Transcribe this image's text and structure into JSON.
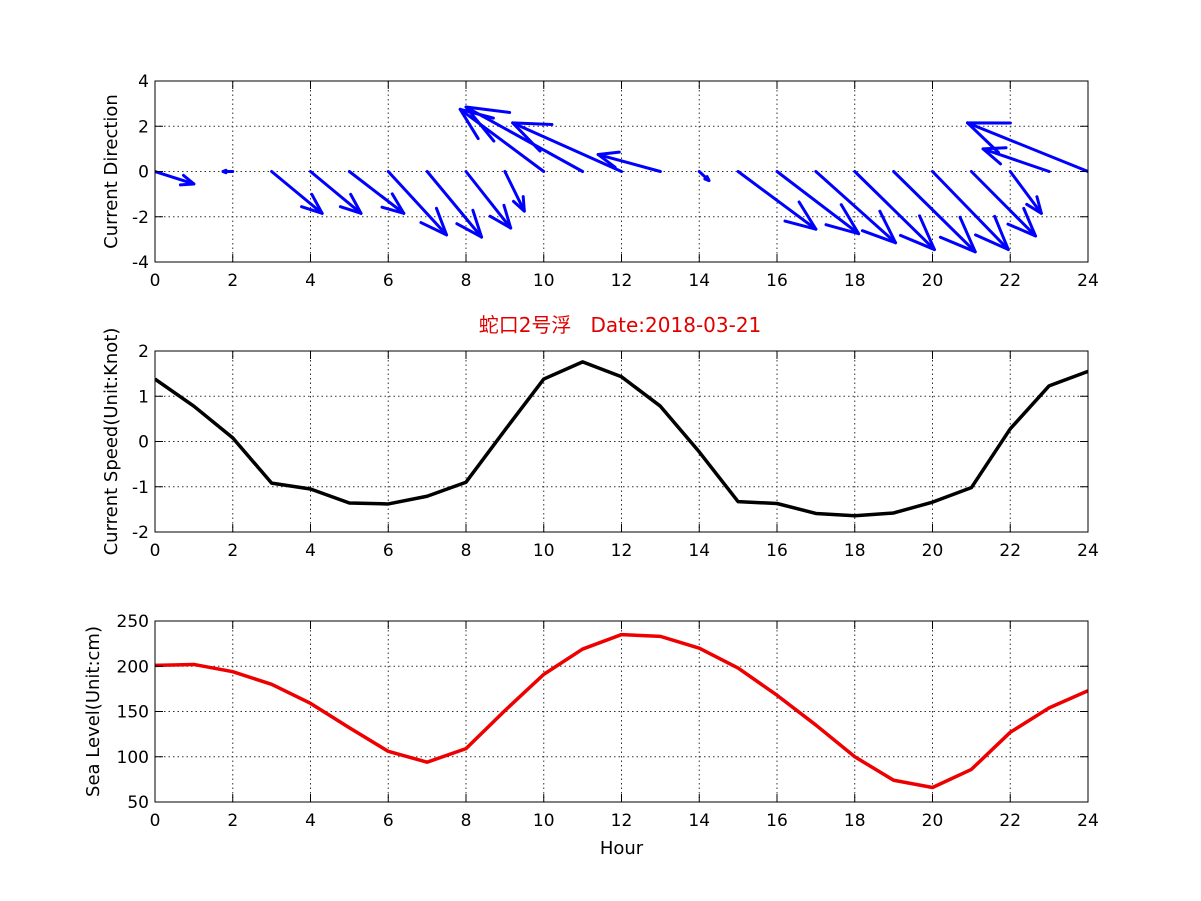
{
  "figure": {
    "title": "蛇口2号浮   Date:2018-03-21",
    "title_color": "#e00000"
  },
  "chart_data": [
    {
      "type": "quiver",
      "xlabel": "",
      "ylabel": "Current Direction",
      "xlim": [
        0,
        24
      ],
      "ylim": [
        -4,
        4
      ],
      "xticks": [
        0,
        2,
        4,
        6,
        8,
        10,
        12,
        14,
        16,
        18,
        20,
        22,
        24
      ],
      "yticks": [
        -4,
        -2,
        0,
        2,
        4
      ],
      "grid": true,
      "color": "#0000ff",
      "x": [
        0,
        1,
        2,
        3,
        4,
        5,
        6,
        7,
        8,
        9,
        10,
        11,
        12,
        13,
        14,
        15,
        16,
        17,
        18,
        19,
        20,
        21,
        22,
        23,
        24
      ],
      "u": [
        1.0,
        0.0,
        -0.25,
        1.3,
        1.3,
        1.4,
        1.5,
        1.4,
        1.15,
        0.5,
        -2.15,
        -3.0,
        -2.8,
        -1.6,
        0.25,
        2.0,
        2.1,
        2.05,
        2.05,
        2.1,
        1.95,
        1.65,
        0.8,
        -1.7,
        -3.1
      ],
      "v": [
        -0.55,
        0.0,
        0.0,
        -1.85,
        -1.85,
        -1.85,
        -2.8,
        -2.9,
        -2.5,
        -1.75,
        2.75,
        2.85,
        2.15,
        0.75,
        -0.4,
        -2.55,
        -2.75,
        -3.15,
        -3.45,
        -3.55,
        -3.45,
        -2.85,
        -1.85,
        1.0,
        2.15
      ]
    },
    {
      "type": "line",
      "xlabel": "",
      "ylabel": "Current Speed(Unit:Knot)",
      "xlim": [
        0,
        24
      ],
      "ylim": [
        -2,
        2
      ],
      "xticks": [
        0,
        2,
        4,
        6,
        8,
        10,
        12,
        14,
        16,
        18,
        20,
        22,
        24
      ],
      "yticks": [
        -2,
        -1,
        0,
        1,
        2
      ],
      "grid": true,
      "color": "#000000",
      "x": [
        0,
        1,
        2,
        3,
        4,
        5,
        6,
        7,
        8,
        9,
        10,
        11,
        12,
        13,
        14,
        15,
        16,
        17,
        18,
        19,
        20,
        21,
        22,
        23,
        24
      ],
      "y": [
        1.38,
        0.78,
        0.08,
        -0.92,
        -1.05,
        -1.36,
        -1.38,
        -1.21,
        -0.9,
        0.25,
        1.38,
        1.76,
        1.43,
        0.78,
        -0.23,
        -1.33,
        -1.37,
        -1.59,
        -1.64,
        -1.58,
        -1.34,
        -1.02,
        0.28,
        1.23,
        1.55
      ]
    },
    {
      "type": "line",
      "xlabel": "Hour",
      "ylabel": "Sea Level(Unit:cm)",
      "xlim": [
        0,
        24
      ],
      "ylim": [
        50,
        250
      ],
      "xticks": [
        0,
        2,
        4,
        6,
        8,
        10,
        12,
        14,
        16,
        18,
        20,
        22,
        24
      ],
      "yticks": [
        50,
        100,
        150,
        200,
        250
      ],
      "grid": true,
      "color": "#ee0000",
      "x": [
        0,
        1,
        2,
        3,
        4,
        5,
        6,
        7,
        8,
        9,
        10,
        11,
        12,
        13,
        14,
        15,
        16,
        17,
        18,
        19,
        20,
        21,
        22,
        23,
        24
      ],
      "y": [
        201,
        202,
        194,
        180,
        159,
        132,
        106,
        94,
        109,
        151,
        191,
        219,
        235,
        233,
        220,
        198,
        168,
        135,
        100,
        74,
        66,
        86,
        127,
        154,
        173
      ]
    }
  ]
}
